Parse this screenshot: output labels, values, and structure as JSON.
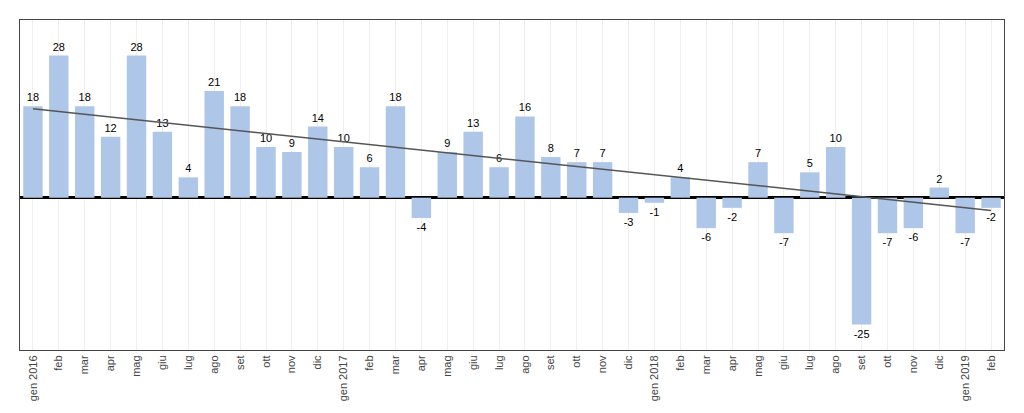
{
  "chart_data": {
    "type": "bar",
    "categories": [
      "gen 2016",
      "feb",
      "mar",
      "apr",
      "mag",
      "giu",
      "lug",
      "ago",
      "set",
      "ott",
      "nov",
      "dic",
      "gen 2017",
      "feb",
      "mar",
      "apr",
      "mag",
      "giu",
      "lug",
      "ago",
      "set",
      "ott",
      "nov",
      "dic",
      "gen 2018",
      "feb",
      "mar",
      "apr",
      "mag",
      "giu",
      "lug",
      "ago",
      "set",
      "ott",
      "nov",
      "dic",
      "gen 2019",
      "feb"
    ],
    "series": [
      {
        "type": "bar",
        "color": "#aec6e8",
        "values": [
          18,
          28,
          18,
          12,
          28,
          13,
          4,
          21,
          18,
          10,
          9,
          14,
          10,
          6,
          18,
          -4,
          9,
          13,
          6,
          16,
          8,
          7,
          7,
          -3,
          -1,
          4,
          -6,
          -2,
          7,
          -7,
          5,
          10,
          -25,
          -7,
          -6,
          2,
          -7,
          -2
        ]
      },
      {
        "type": "line",
        "color": "#555555",
        "values": [
          17.5,
          null,
          null,
          null,
          null,
          null,
          null,
          null,
          null,
          null,
          null,
          null,
          null,
          null,
          null,
          null,
          null,
          null,
          null,
          null,
          null,
          null,
          null,
          null,
          null,
          null,
          null,
          null,
          null,
          null,
          null,
          null,
          null,
          null,
          null,
          null,
          null,
          -2.5
        ]
      }
    ],
    "ylim": [
      -30,
      35
    ],
    "grid": true,
    "data_labels": true,
    "tick_labels": "x"
  }
}
